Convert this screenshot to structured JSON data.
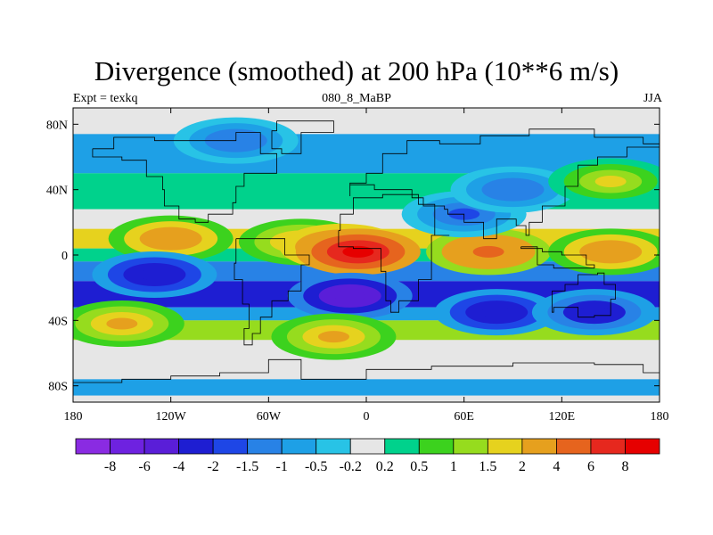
{
  "header": {
    "title": "Divergence (smoothed) at 200 hPa (10**6 m/s)",
    "left_label": "Expt = texkq",
    "center_label": "080_8_MaBP",
    "right_label": "JJA"
  },
  "chart_data": {
    "type": "heatmap",
    "title": "Divergence (smoothed) at 200 hPa (10**6 m/s)",
    "variable": "Divergence",
    "level": "200 hPa",
    "units": "10**6 m/s",
    "xlim": [
      -180,
      180
    ],
    "ylim": [
      -90,
      90
    ],
    "x_ticks": [
      {
        "value": -180,
        "label": "180"
      },
      {
        "value": -120,
        "label": "120W"
      },
      {
        "value": -60,
        "label": "60W"
      },
      {
        "value": 0,
        "label": "0"
      },
      {
        "value": 60,
        "label": "60E"
      },
      {
        "value": 120,
        "label": "120E"
      },
      {
        "value": 180,
        "label": "180"
      }
    ],
    "y_ticks": [
      {
        "value": 80,
        "label": "80N"
      },
      {
        "value": 40,
        "label": "40N"
      },
      {
        "value": 0,
        "label": "0"
      },
      {
        "value": -40,
        "label": "40S"
      },
      {
        "value": -80,
        "label": "80S"
      }
    ],
    "contour_levels": [
      "-8",
      "-6",
      "-4",
      "-2",
      "-1.5",
      "-1",
      "-0.5",
      "-0.2",
      "0.2",
      "0.5",
      "1",
      "1.5",
      "2",
      "4",
      "6",
      "8"
    ],
    "colors": [
      "#8a2be2",
      "#6e22e0",
      "#5a1ed8",
      "#1e1ed2",
      "#1e46e6",
      "#2882e6",
      "#1ea0e6",
      "#28c3e6",
      "#e6e6e6",
      "#00d28c",
      "#3cd21e",
      "#96dc1e",
      "#e6d21e",
      "#e6a01e",
      "#e6641e",
      "#e6281e",
      "#e60000"
    ],
    "features": [
      {
        "lon": -120,
        "lat": 10,
        "value": 3
      },
      {
        "lon": -40,
        "lat": 8,
        "value": 2.5
      },
      {
        "lon": -15,
        "lat": 5,
        "value": 6
      },
      {
        "lon": -5,
        "lat": 2,
        "value": 8
      },
      {
        "lon": 75,
        "lat": 2,
        "value": 4
      },
      {
        "lon": 150,
        "lat": 2,
        "value": 3
      },
      {
        "lon": -130,
        "lat": -12,
        "value": -4
      },
      {
        "lon": -10,
        "lat": -25,
        "value": -6
      },
      {
        "lon": 80,
        "lat": -35,
        "value": -4
      },
      {
        "lon": 140,
        "lat": -35,
        "value": -3
      },
      {
        "lon": -80,
        "lat": 70,
        "value": -1.5
      },
      {
        "lon": 60,
        "lat": 25,
        "value": -2
      },
      {
        "lon": 90,
        "lat": 40,
        "value": -1.5
      },
      {
        "lon": 150,
        "lat": 45,
        "value": 1.5
      },
      {
        "lon": -150,
        "lat": -42,
        "value": 2
      },
      {
        "lon": -20,
        "lat": -50,
        "value": 2.5
      }
    ]
  }
}
